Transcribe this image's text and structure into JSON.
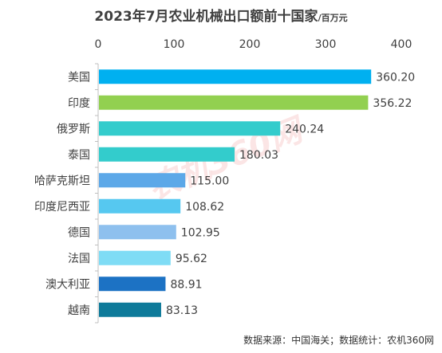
{
  "header": {
    "title": "2023年7月农业机械出口额前十国家",
    "unit": "/百万元"
  },
  "footer": {
    "source": "数据来源：中国海关；数据统计：农机360网"
  },
  "watermark": {
    "text": "农机360网"
  },
  "chart_data": {
    "type": "bar",
    "orientation": "horizontal",
    "title": "2023年7月农业机械出口额前十国家",
    "unit": "/百万元",
    "xlim": [
      0,
      400
    ],
    "x_ticks": [
      0,
      100,
      200,
      300,
      400
    ],
    "x_axis_position": "top",
    "grid": false,
    "categories": [
      "美国",
      "印度",
      "俄罗斯",
      "泰国",
      "哈萨克斯坦",
      "印度尼西亚",
      "德国",
      "法国",
      "澳大利亚",
      "越南"
    ],
    "values": [
      360.2,
      356.22,
      240.24,
      180.03,
      115.0,
      108.62,
      102.95,
      95.62,
      88.91,
      83.13
    ],
    "value_labels": [
      "360.20",
      "356.22",
      "240.24",
      "180.03",
      "115.00",
      "108.62",
      "102.95",
      "95.62",
      "88.91",
      "83.13"
    ],
    "colors": [
      "#00b0f0",
      "#92d050",
      "#33cccc",
      "#33cccc",
      "#5ca8e8",
      "#56c8f0",
      "#8ec0ee",
      "#7fdcf5",
      "#1c72c4",
      "#0e7a9a"
    ]
  }
}
